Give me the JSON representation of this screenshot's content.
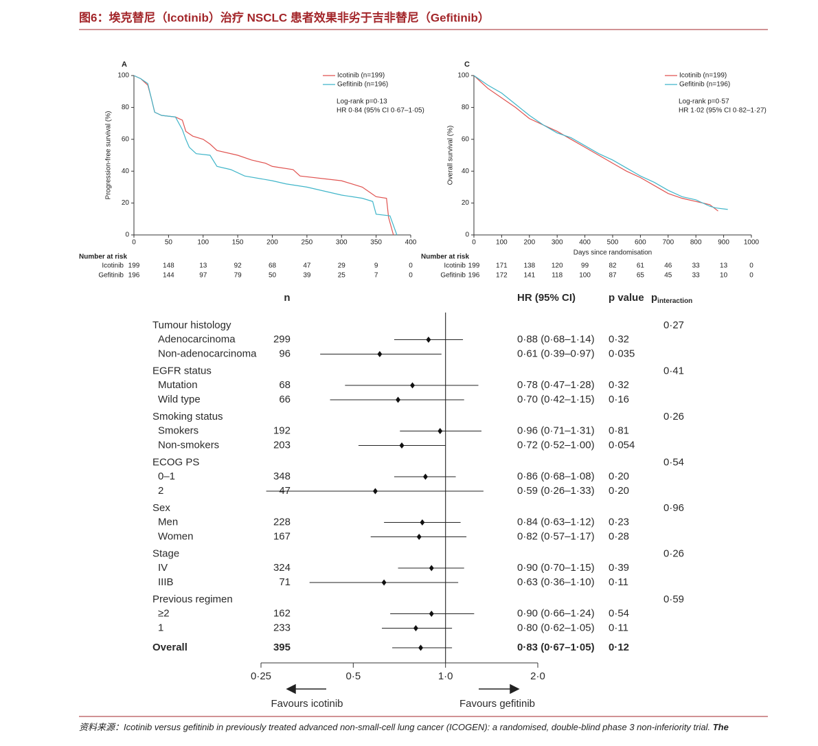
{
  "header": {
    "title": "图6：埃克替尼（Icotinib）治疗 NSCLC 患者效果非劣于吉非替尼（Gefitinib）"
  },
  "chart_data": [
    {
      "type": "line",
      "panel": "A",
      "ylabel": "Progression-free survival (%)",
      "xlim": [
        0,
        400
      ],
      "xticks": [
        0,
        50,
        100,
        150,
        200,
        250,
        300,
        350,
        400
      ],
      "ylim": [
        0,
        100
      ],
      "yticks": [
        0,
        20,
        40,
        60,
        80,
        100
      ],
      "legend": "upper right",
      "series": [
        {
          "name": "Icotinib (n=199)",
          "color": "#e0524f",
          "x": [
            0,
            10,
            20,
            25,
            30,
            40,
            60,
            70,
            75,
            85,
            100,
            110,
            120,
            150,
            170,
            190,
            200,
            230,
            240,
            300,
            330,
            340,
            350,
            365,
            368,
            375
          ],
          "values": [
            100,
            98,
            94,
            86,
            77,
            75,
            74,
            72,
            65,
            62,
            60,
            57,
            53,
            50,
            47,
            45,
            43,
            41,
            37,
            34,
            30,
            27,
            24,
            23,
            11,
            0
          ]
        },
        {
          "name": "Gefitinib (n=196)",
          "color": "#3fb5c9",
          "x": [
            0,
            10,
            20,
            25,
            30,
            40,
            60,
            70,
            75,
            80,
            90,
            110,
            120,
            140,
            160,
            200,
            220,
            250,
            300,
            330,
            345,
            350,
            370,
            380
          ],
          "values": [
            100,
            98,
            95,
            86,
            77,
            75,
            74,
            66,
            60,
            55,
            51,
            50,
            43,
            41,
            37,
            34,
            32,
            30,
            25,
            23,
            21,
            13,
            12,
            0
          ]
        }
      ],
      "annotations": [
        "Log-rank p=0·13",
        "HR 0·84 (95% CI 0·67–1·05)"
      ],
      "risk_table": {
        "title": "Number at risk",
        "rows": [
          {
            "name": "Icotinib",
            "values": [
              199,
              148,
              13,
              92,
              68,
              47,
              29,
              9,
              0
            ]
          },
          {
            "name": "Gefitinib",
            "values": [
              196,
              144,
              97,
              79,
              50,
              39,
              25,
              7,
              0
            ]
          }
        ]
      }
    },
    {
      "type": "line",
      "panel": "C",
      "ylabel": "Overall survival (%)",
      "xlabel": "Days since randomisation",
      "xlim": [
        0,
        1000
      ],
      "xticks": [
        0,
        100,
        200,
        300,
        400,
        500,
        600,
        700,
        800,
        900,
        1000
      ],
      "ylim": [
        0,
        100
      ],
      "yticks": [
        0,
        20,
        40,
        60,
        80,
        100
      ],
      "legend": "upper right",
      "series": [
        {
          "name": "Icotinib (n=199)",
          "color": "#e0524f",
          "x": [
            0,
            50,
            100,
            150,
            200,
            250,
            300,
            350,
            400,
            450,
            500,
            550,
            600,
            650,
            700,
            750,
            800,
            850,
            880
          ],
          "values": [
            100,
            92,
            86,
            80,
            73,
            69,
            65,
            60,
            55,
            50,
            45,
            40,
            36,
            31,
            26,
            23,
            21,
            19,
            15
          ]
        },
        {
          "name": "Gefitinib (n=196)",
          "color": "#3fb5c9",
          "x": [
            0,
            50,
            100,
            150,
            200,
            250,
            300,
            350,
            400,
            450,
            500,
            550,
            600,
            650,
            700,
            750,
            800,
            850,
            870,
            915
          ],
          "values": [
            100,
            94,
            89,
            82,
            75,
            69,
            64,
            61,
            56,
            51,
            47,
            42,
            37,
            33,
            28,
            24,
            22,
            18,
            17,
            16
          ]
        }
      ],
      "annotations": [
        "Log-rank p=0·57",
        "HR 1·02 (95% CI 0·82–1·27)"
      ],
      "risk_table": {
        "title": "Number at risk",
        "rows": [
          {
            "name": "Icotinib",
            "values": [
              199,
              171,
              138,
              120,
              99,
              82,
              61,
              46,
              33,
              13,
              0
            ]
          },
          {
            "name": "Gefitinib",
            "values": [
              196,
              172,
              141,
              118,
              100,
              87,
              65,
              45,
              33,
              10,
              0
            ]
          }
        ]
      }
    },
    {
      "type": "forest",
      "log_scale": true,
      "xlim": [
        0.25,
        2
      ],
      "xticks": [
        {
          "value": 0.25,
          "label": "0·25"
        },
        {
          "value": 0.5,
          "label": "0·5"
        },
        {
          "value": 1,
          "label": "1·0"
        },
        {
          "value": 2,
          "label": "2·0"
        }
      ],
      "ref_line": 1,
      "columns": {
        "n": "n",
        "hr": "HR (95% CI)",
        "p": "p value",
        "p_interaction": {
          "main": "p",
          "sub": "interaction"
        }
      },
      "favours": [
        "Favours icotinib",
        "Favours gefitinib"
      ],
      "groups": [
        {
          "label": "Tumour histology",
          "p_interaction": "0·27",
          "rows": [
            {
              "label": "Adenocarcinoma",
              "n": 299,
              "hr": 0.88,
              "lo": 0.68,
              "hi": 1.14,
              "ci_label": "0·88 (0·68–1·14)",
              "p": "0·32"
            },
            {
              "label": "Non-adenocarcinoma",
              "n": 96,
              "hr": 0.61,
              "lo": 0.39,
              "hi": 0.97,
              "ci_label": "0·61 (0·39–0·97)",
              "p": "0·035"
            }
          ]
        },
        {
          "label": "EGFR status",
          "p_interaction": "0·41",
          "rows": [
            {
              "label": "Mutation",
              "n": 68,
              "hr": 0.78,
              "lo": 0.47,
              "hi": 1.28,
              "ci_label": "0·78 (0·47–1·28)",
              "p": "0·32"
            },
            {
              "label": "Wild type",
              "n": 66,
              "hr": 0.7,
              "lo": 0.42,
              "hi": 1.15,
              "ci_label": "0·70 (0·42–1·15)",
              "p": "0·16"
            }
          ]
        },
        {
          "label": "Smoking status",
          "p_interaction": "0·26",
          "rows": [
            {
              "label": "Smokers",
              "n": 192,
              "hr": 0.96,
              "lo": 0.71,
              "hi": 1.31,
              "ci_label": "0·96 (0·71–1·31)",
              "p": "0·81"
            },
            {
              "label": "Non-smokers",
              "n": 203,
              "hr": 0.72,
              "lo": 0.52,
              "hi": 1.0,
              "ci_label": "0·72 (0·52–1·00)",
              "p": "0·054"
            }
          ]
        },
        {
          "label": "ECOG PS",
          "p_interaction": "0·54",
          "rows": [
            {
              "label": "0–1",
              "n": 348,
              "hr": 0.86,
              "lo": 0.68,
              "hi": 1.08,
              "ci_label": "0·86 (0·68–1·08)",
              "p": "0·20"
            },
            {
              "label": "2",
              "n": 47,
              "hr": 0.59,
              "lo": 0.26,
              "hi": 1.33,
              "ci_label": "0·59 (0·26–1·33)",
              "p": "0·20"
            }
          ]
        },
        {
          "label": "Sex",
          "p_interaction": "0·96",
          "rows": [
            {
              "label": "Men",
              "n": 228,
              "hr": 0.84,
              "lo": 0.63,
              "hi": 1.12,
              "ci_label": "0·84 (0·63–1·12)",
              "p": "0·23"
            },
            {
              "label": "Women",
              "n": 167,
              "hr": 0.82,
              "lo": 0.57,
              "hi": 1.17,
              "ci_label": "0·82 (0·57–1·17)",
              "p": "0·28"
            }
          ]
        },
        {
          "label": "Stage",
          "p_interaction": "0·26",
          "rows": [
            {
              "label": "IV",
              "n": 324,
              "hr": 0.9,
              "lo": 0.7,
              "hi": 1.15,
              "ci_label": "0·90 (0·70–1·15)",
              "p": "0·39"
            },
            {
              "label": "IIIB",
              "n": 71,
              "hr": 0.63,
              "lo": 0.36,
              "hi": 1.1,
              "ci_label": "0·63 (0·36–1·10)",
              "p": "0·11"
            }
          ]
        },
        {
          "label": "Previous regimen",
          "p_interaction": "0·59",
          "rows": [
            {
              "label": "≥2",
              "n": 162,
              "hr": 0.9,
              "lo": 0.66,
              "hi": 1.24,
              "ci_label": "0·90 (0·66–1·24)",
              "p": "0·54"
            },
            {
              "label": "1",
              "n": 233,
              "hr": 0.8,
              "lo": 0.62,
              "hi": 1.05,
              "ci_label": "0·80 (0·62–1·05)",
              "p": "0·11"
            }
          ]
        }
      ],
      "overall": {
        "label": "Overall",
        "n": 395,
        "hr": 0.83,
        "lo": 0.67,
        "hi": 1.05,
        "ci_label": "0·83 (0·67–1·05)",
        "p": "0·12"
      }
    }
  ],
  "footer": {
    "source": "资料来源：",
    "text": "Icotinib versus gefitinib in previously treated advanced non-small-cell lung cancer (ICOGEN): a randomised, double-blind phase 3 non-inferiority trial. ",
    "bold": "The"
  }
}
